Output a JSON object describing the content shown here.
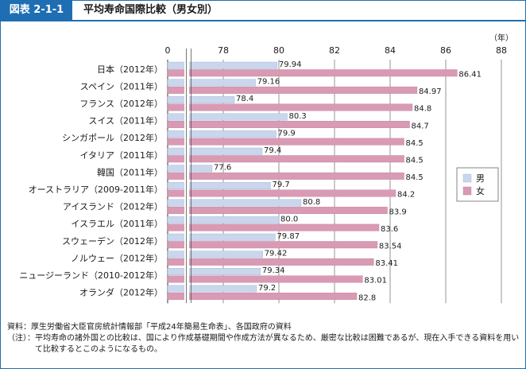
{
  "header": {
    "figure_label": "図表 2-1-1",
    "title": "平均寿命国際比較（男女別）"
  },
  "colors": {
    "male": "#c9d6ec",
    "female": "#d99ab4",
    "accent": "#1f6eb3"
  },
  "chart_data": {
    "type": "bar",
    "orientation": "horizontal",
    "unit_label": "（年）",
    "categories": [
      "日本（2012年）",
      "スペイン（2011年）",
      "フランス（2012年）",
      "スイス（2011年）",
      "シンガポール（2012年）",
      "イタリア（2011年）",
      "韓国（2011年）",
      "オーストラリア（2009-2011年）",
      "アイスランド（2012年）",
      "イスラエル（2011年）",
      "スウェーデン（2012年）",
      "ノルウェー（2012年）",
      "ニュージーランド（2010-2012年）",
      "オランダ（2012年）"
    ],
    "series": [
      {
        "name": "男",
        "values": [
          79.94,
          79.16,
          78.4,
          80.3,
          79.9,
          79.4,
          77.6,
          79.7,
          80.8,
          80.0,
          79.87,
          79.42,
          79.34,
          79.2
        ],
        "labels": [
          "79.94",
          "79.16",
          "78.4",
          "80.3",
          "79.9",
          "79.4",
          "77.6",
          "79.7",
          "80.8",
          "80.0",
          "79.87",
          "79.42",
          "79.34",
          "79.2"
        ]
      },
      {
        "name": "女",
        "values": [
          86.41,
          84.97,
          84.8,
          84.7,
          84.5,
          84.5,
          84.5,
          84.2,
          83.9,
          83.6,
          83.54,
          83.41,
          83.01,
          82.8
        ],
        "labels": [
          "86.41",
          "84.97",
          "84.8",
          "84.7",
          "84.5",
          "84.5",
          "84.5",
          "84.2",
          "83.9",
          "83.6",
          "83.54",
          "83.41",
          "83.01",
          "82.8"
        ]
      }
    ],
    "x_ticks": [
      0,
      78,
      80,
      82,
      84,
      86,
      88
    ],
    "x_tick_labels": [
      "0",
      "78",
      "80",
      "82",
      "84",
      "86",
      "88"
    ],
    "axis_break": true,
    "xlim": [
      76,
      88
    ],
    "grid": true,
    "legend_position": "right"
  },
  "notes": [
    {
      "label": "資料：",
      "text": "厚生労働省大臣官房統計情報部「平成24年簡易生命表」、各国政府の資料"
    },
    {
      "label": "（注）：",
      "text": "平均寿命の諸外国との比較は、国により作成基礎期間や作成方法が異なるため、厳密な比較は困難であるが、現在入手できる資料を用いて比較するとこのようになるもの。"
    }
  ]
}
